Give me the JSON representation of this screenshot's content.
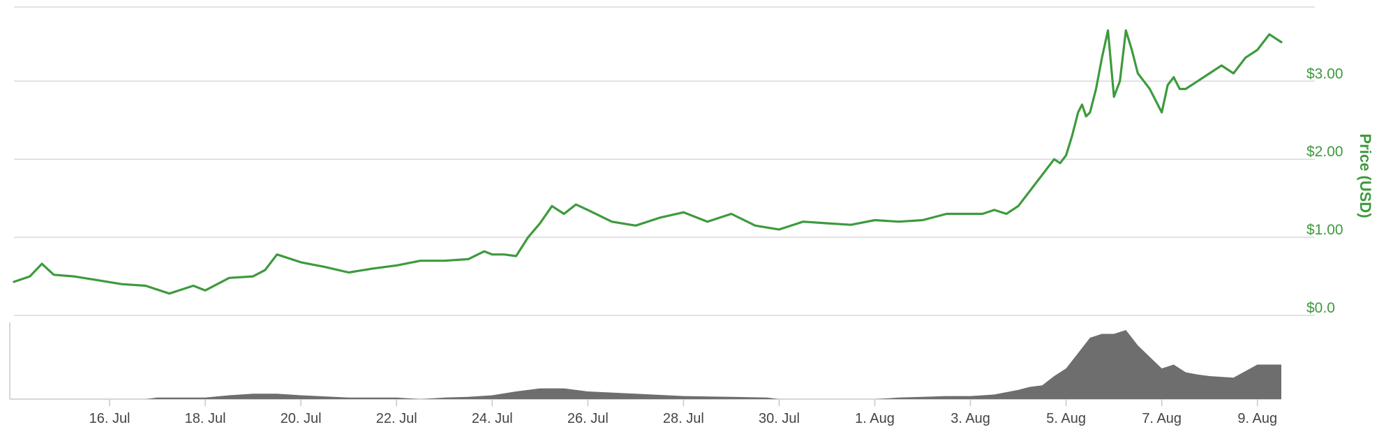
{
  "chart_data": {
    "type": "line",
    "x_ticks": [
      "16. Jul",
      "18. Jul",
      "20. Jul",
      "22. Jul",
      "24. Jul",
      "26. Jul",
      "28. Jul",
      "30. Jul",
      "1. Aug",
      "3. Aug",
      "5. Aug",
      "7. Aug",
      "9. Aug"
    ],
    "x_range": [
      "2017-07-14",
      "2017-08-09T12:00"
    ],
    "y_ticks": [
      "$0.0",
      "$1.00",
      "$2.00",
      "$3.00"
    ],
    "ylabel": "Price (USD)",
    "ylim": [
      0,
      3.95
    ],
    "grid": true,
    "colors": {
      "price": "#3d9a3d",
      "volume": "#6e6e6e",
      "grid": "#d8d8d8"
    },
    "series": [
      {
        "kind": "price",
        "x": [
          "2017-07-14T00:00",
          "2017-07-14T08:00",
          "2017-07-14T14:00",
          "2017-07-14T20:00",
          "2017-07-15T06:00",
          "2017-07-15T18:00",
          "2017-07-16T06:00",
          "2017-07-16T18:00",
          "2017-07-17T06:00",
          "2017-07-17T12:00",
          "2017-07-17T18:00",
          "2017-07-18T00:00",
          "2017-07-18T12:00",
          "2017-07-19T00:00",
          "2017-07-19T06:00",
          "2017-07-19T12:00",
          "2017-07-20T00:00",
          "2017-07-20T12:00",
          "2017-07-21T00:00",
          "2017-07-21T12:00",
          "2017-07-22T00:00",
          "2017-07-22T12:00",
          "2017-07-23T00:00",
          "2017-07-23T12:00",
          "2017-07-23T20:00",
          "2017-07-24T00:00",
          "2017-07-24T06:00",
          "2017-07-24T12:00",
          "2017-07-24T18:00",
          "2017-07-25T00:00",
          "2017-07-25T06:00",
          "2017-07-25T12:00",
          "2017-07-25T18:00",
          "2017-07-26T00:00",
          "2017-07-26T12:00",
          "2017-07-27T00:00",
          "2017-07-27T12:00",
          "2017-07-28T00:00",
          "2017-07-28T12:00",
          "2017-07-29T00:00",
          "2017-07-29T12:00",
          "2017-07-30T00:00",
          "2017-07-30T12:00",
          "2017-07-31T00:00",
          "2017-07-31T12:00",
          "2017-08-01T00:00",
          "2017-08-01T12:00",
          "2017-08-02T00:00",
          "2017-08-02T12:00",
          "2017-08-03T00:00",
          "2017-08-03T06:00",
          "2017-08-03T12:00",
          "2017-08-03T18:00",
          "2017-08-04T00:00",
          "2017-08-04T06:00",
          "2017-08-04T12:00",
          "2017-08-04T18:00",
          "2017-08-04T21:00",
          "2017-08-05T00:00",
          "2017-08-05T03:00",
          "2017-08-05T06:00",
          "2017-08-05T08:00",
          "2017-08-05T10:00",
          "2017-08-05T12:00",
          "2017-08-05T15:00",
          "2017-08-05T18:00",
          "2017-08-05T21:00",
          "2017-08-06T00:00",
          "2017-08-06T03:00",
          "2017-08-06T06:00",
          "2017-08-06T09:00",
          "2017-08-06T12:00",
          "2017-08-06T15:00",
          "2017-08-06T18:00",
          "2017-08-07T00:00",
          "2017-08-07T03:00",
          "2017-08-07T06:00",
          "2017-08-07T09:00",
          "2017-08-07T12:00",
          "2017-08-07T18:00",
          "2017-08-08T00:00",
          "2017-08-08T06:00",
          "2017-08-08T12:00",
          "2017-08-08T18:00",
          "2017-08-09T00:00",
          "2017-08-09T06:00",
          "2017-08-09T09:00",
          "2017-08-09T12:00"
        ],
        "values": [
          0.43,
          0.5,
          0.66,
          0.52,
          0.5,
          0.45,
          0.4,
          0.38,
          0.28,
          0.33,
          0.38,
          0.32,
          0.48,
          0.5,
          0.58,
          0.78,
          0.68,
          0.62,
          0.55,
          0.6,
          0.64,
          0.7,
          0.7,
          0.72,
          0.82,
          0.78,
          0.78,
          0.76,
          1.0,
          1.18,
          1.4,
          1.3,
          1.42,
          1.35,
          1.2,
          1.15,
          1.25,
          1.32,
          1.2,
          1.3,
          1.15,
          1.1,
          1.2,
          1.18,
          1.16,
          1.22,
          1.2,
          1.22,
          1.3,
          1.3,
          1.3,
          1.35,
          1.3,
          1.4,
          1.6,
          1.8,
          2.0,
          1.95,
          2.05,
          2.3,
          2.6,
          2.7,
          2.55,
          2.6,
          2.9,
          3.3,
          3.65,
          2.8,
          3.0,
          3.65,
          3.4,
          3.1,
          3.0,
          2.9,
          2.6,
          2.95,
          3.05,
          2.9,
          2.9,
          3.0,
          3.1,
          3.2,
          3.1,
          3.3,
          3.4,
          3.6,
          3.55,
          3.5
        ]
      },
      {
        "kind": "volume",
        "x": [
          "2017-07-14T00:00",
          "2017-07-16T00:00",
          "2017-07-16T18:00",
          "2017-07-17T00:00",
          "2017-07-18T00:00",
          "2017-07-18T12:00",
          "2017-07-19T00:00",
          "2017-07-19T12:00",
          "2017-07-20T00:00",
          "2017-07-21T00:00",
          "2017-07-22T00:00",
          "2017-07-22T12:00",
          "2017-07-23T00:00",
          "2017-07-23T12:00",
          "2017-07-24T00:00",
          "2017-07-24T12:00",
          "2017-07-25T00:00",
          "2017-07-25T12:00",
          "2017-07-26T00:00",
          "2017-07-27T00:00",
          "2017-07-28T00:00",
          "2017-07-29T00:00",
          "2017-07-29T18:00",
          "2017-07-30T00:00",
          "2017-07-31T00:00",
          "2017-08-01T00:00",
          "2017-08-01T12:00",
          "2017-08-02T00:00",
          "2017-08-02T12:00",
          "2017-08-03T00:00",
          "2017-08-03T12:00",
          "2017-08-04T00:00",
          "2017-08-04T06:00",
          "2017-08-04T12:00",
          "2017-08-04T18:00",
          "2017-08-05T00:00",
          "2017-08-05T06:00",
          "2017-08-05T12:00",
          "2017-08-05T18:00",
          "2017-08-06T00:00",
          "2017-08-06T06:00",
          "2017-08-06T12:00",
          "2017-08-06T18:00",
          "2017-08-07T00:00",
          "2017-08-07T06:00",
          "2017-08-07T12:00",
          "2017-08-07T18:00",
          "2017-08-08T00:00",
          "2017-08-08T12:00",
          "2017-08-09T00:00",
          "2017-08-09T12:00"
        ],
        "values": [
          0.0,
          0.0,
          0.0,
          0.02,
          0.02,
          0.05,
          0.07,
          0.07,
          0.05,
          0.02,
          0.02,
          0.0,
          0.02,
          0.03,
          0.05,
          0.1,
          0.14,
          0.14,
          0.1,
          0.07,
          0.04,
          0.03,
          0.02,
          0.0,
          0.0,
          0.0,
          0.02,
          0.03,
          0.04,
          0.04,
          0.06,
          0.12,
          0.16,
          0.18,
          0.3,
          0.4,
          0.6,
          0.8,
          0.85,
          0.85,
          0.9,
          0.7,
          0.55,
          0.4,
          0.45,
          0.35,
          0.32,
          0.3,
          0.28,
          0.45,
          0.45
        ]
      }
    ]
  }
}
